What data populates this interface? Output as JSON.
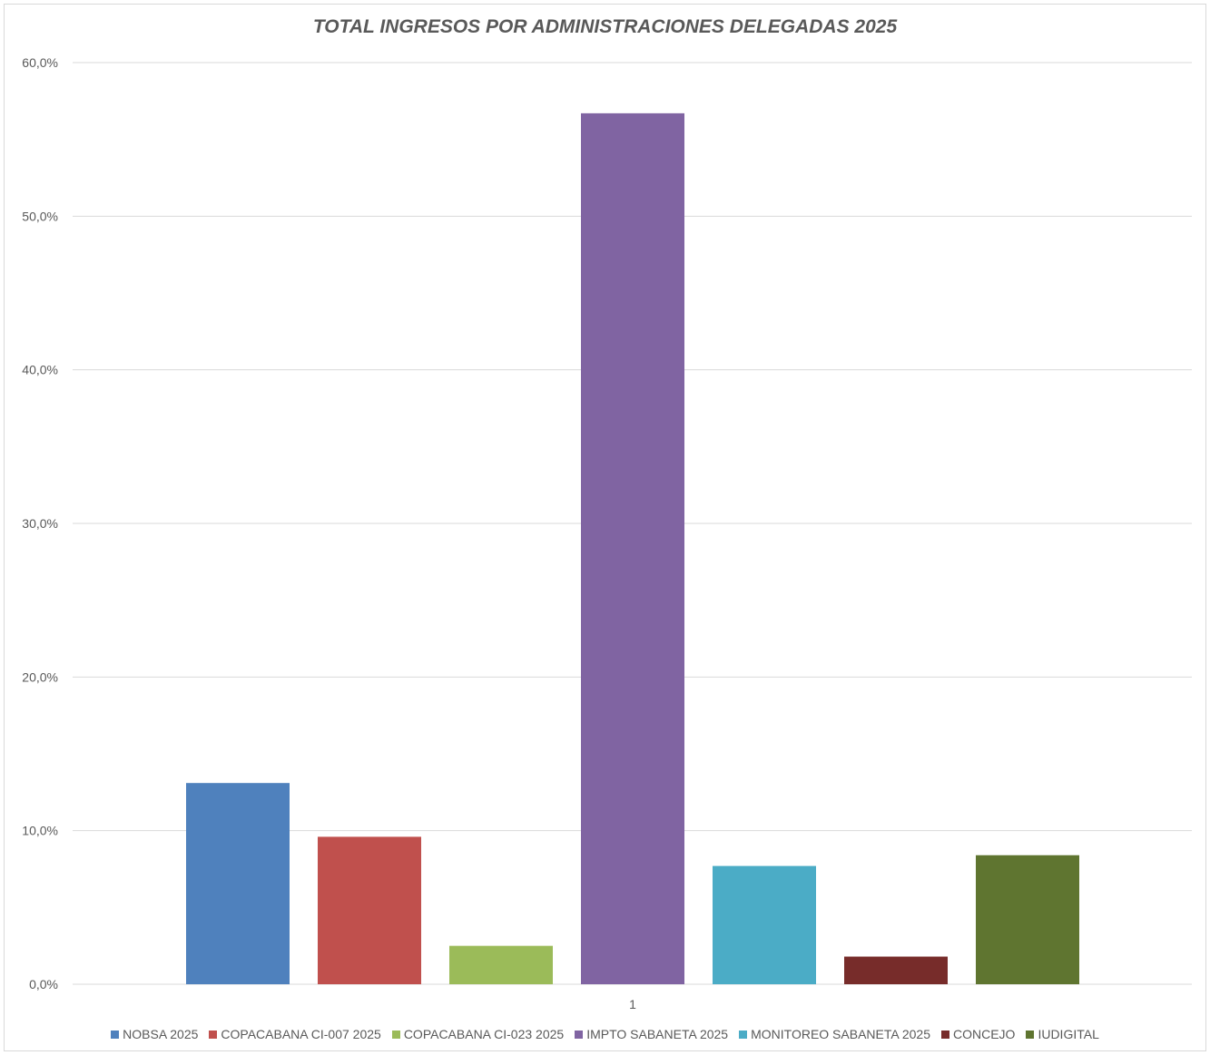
{
  "chart_data": {
    "type": "bar",
    "title": "TOTAL INGRESOS POR ADMINISTRACIONES DELEGADAS 2025",
    "categories": [
      "1"
    ],
    "ylim": [
      0,
      60
    ],
    "yticks": [
      "0,0%",
      "10,0%",
      "20,0%",
      "30,0%",
      "40,0%",
      "50,0%",
      "60,0%"
    ],
    "grid": true,
    "legend_position": "bottom",
    "series": [
      {
        "name": "NOBSA 2025",
        "values": [
          13.1
        ],
        "color": "#4F81BD"
      },
      {
        "name": "COPACABANA CI-007 2025",
        "values": [
          9.6
        ],
        "color": "#C0504D"
      },
      {
        "name": "COPACABANA CI-023 2025",
        "values": [
          2.5
        ],
        "color": "#9BBB59"
      },
      {
        "name": "IMPTO SABANETA 2025",
        "values": [
          56.7
        ],
        "color": "#8064A2"
      },
      {
        "name": "MONITOREO SABANETA 2025",
        "values": [
          7.7
        ],
        "color": "#4BACC6"
      },
      {
        "name": "CONCEJO",
        "values": [
          1.8
        ],
        "color": "#772C2A"
      },
      {
        "name": "IUDIGITAL",
        "values": [
          8.4
        ],
        "color": "#5F7530"
      }
    ]
  }
}
